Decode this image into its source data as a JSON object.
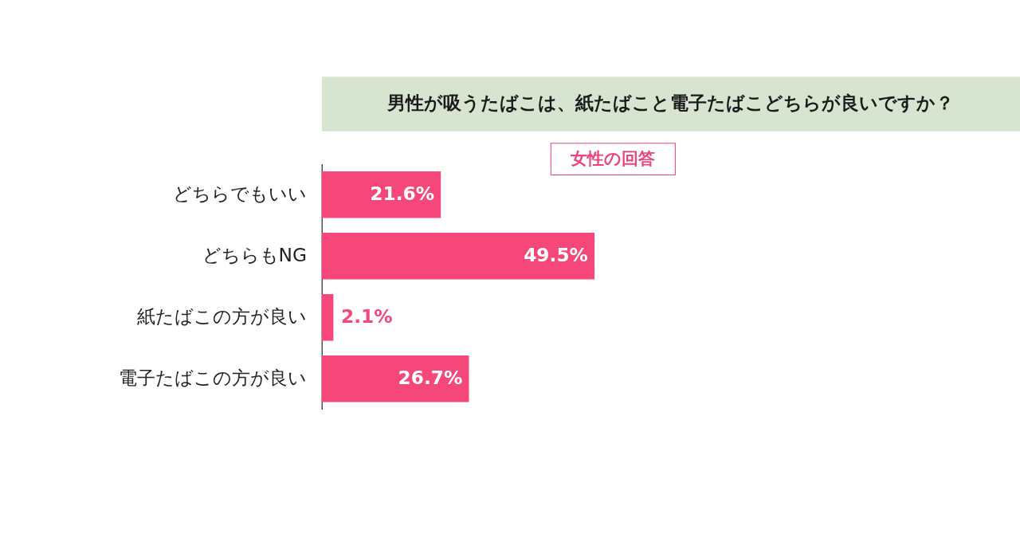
{
  "chart_data": {
    "type": "bar",
    "orientation": "horizontal",
    "title": "男性が吸うたばこは、紙たばこと電子たばこどちらが良いですか？",
    "subtitle": "女性の回答",
    "categories": [
      "どちらでもいい",
      "どちらもNG",
      "紙たばこの方が良い",
      "電子たばこの方が良い"
    ],
    "values": [
      21.6,
      49.5,
      2.1,
      26.7
    ],
    "value_labels": [
      "21.6%",
      "49.5%",
      "2.1%",
      "26.7%"
    ],
    "color": "#f5477a"
  }
}
